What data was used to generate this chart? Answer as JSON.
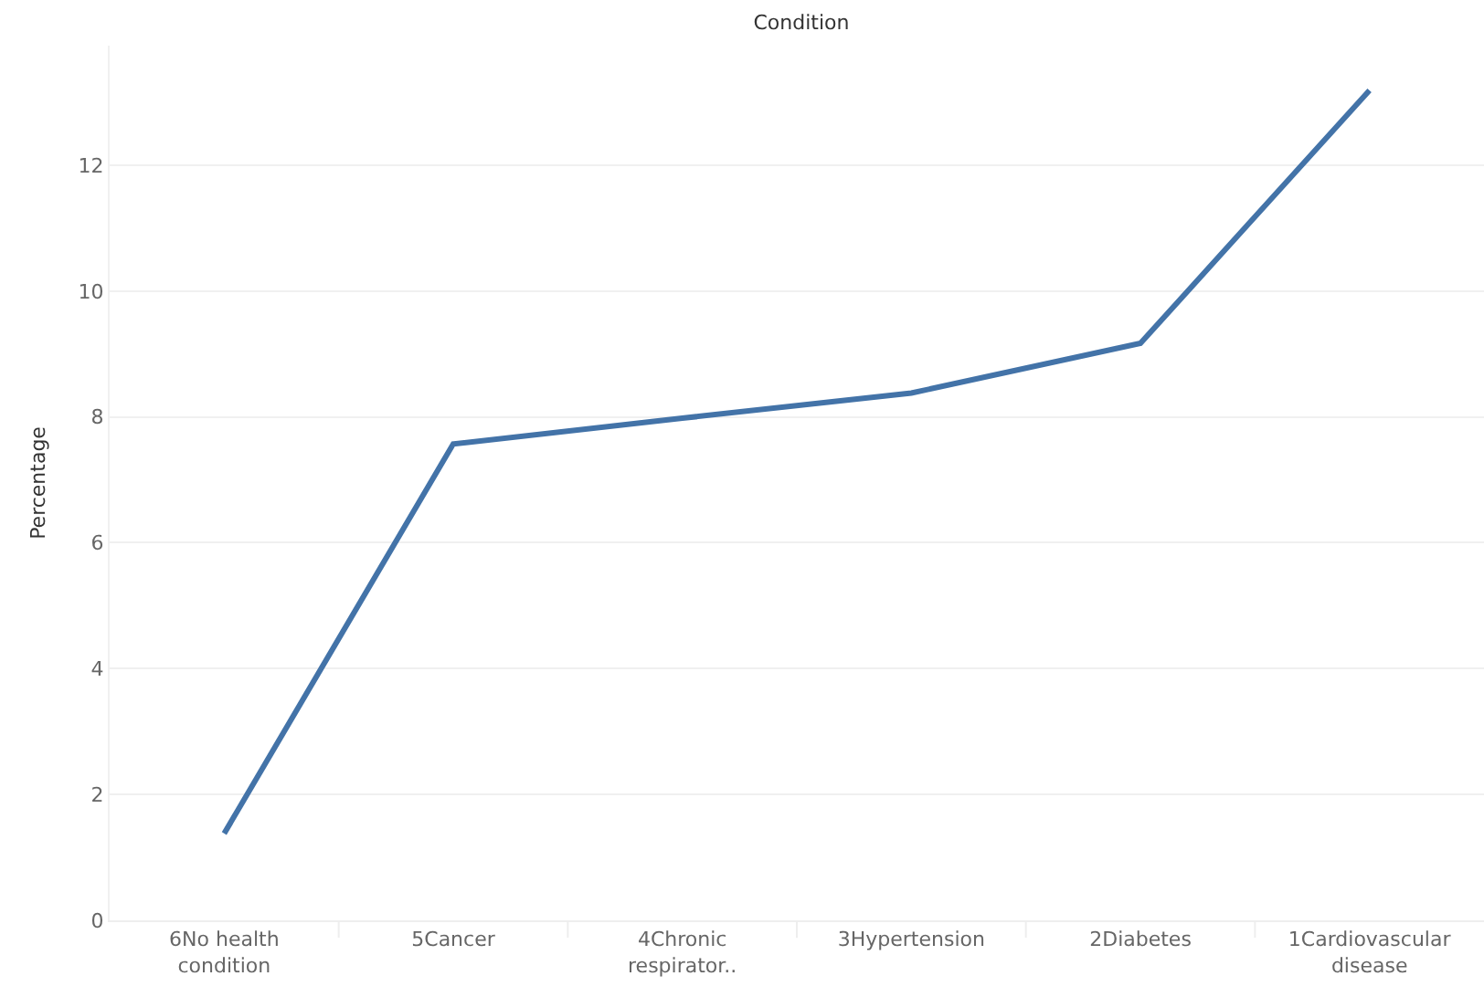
{
  "chart_data": {
    "type": "line",
    "title": "Condition",
    "ylabel": "Percentage",
    "categories": [
      "6No health condition",
      "5Cancer",
      "4Chronic respirator..",
      "3Hypertension",
      "2Diabetes",
      "1Cardiovascular disease"
    ],
    "series": [
      {
        "color": "#4373a8",
        "values": [
          1.38,
          7.57,
          7.98,
          8.38,
          9.17,
          13.19
        ]
      }
    ],
    "ylim": [
      0,
      13.9
    ],
    "yticks": [
      0,
      2,
      4,
      6,
      8,
      10,
      12
    ],
    "grid": "y",
    "marker": "none",
    "line_style": "solid"
  }
}
